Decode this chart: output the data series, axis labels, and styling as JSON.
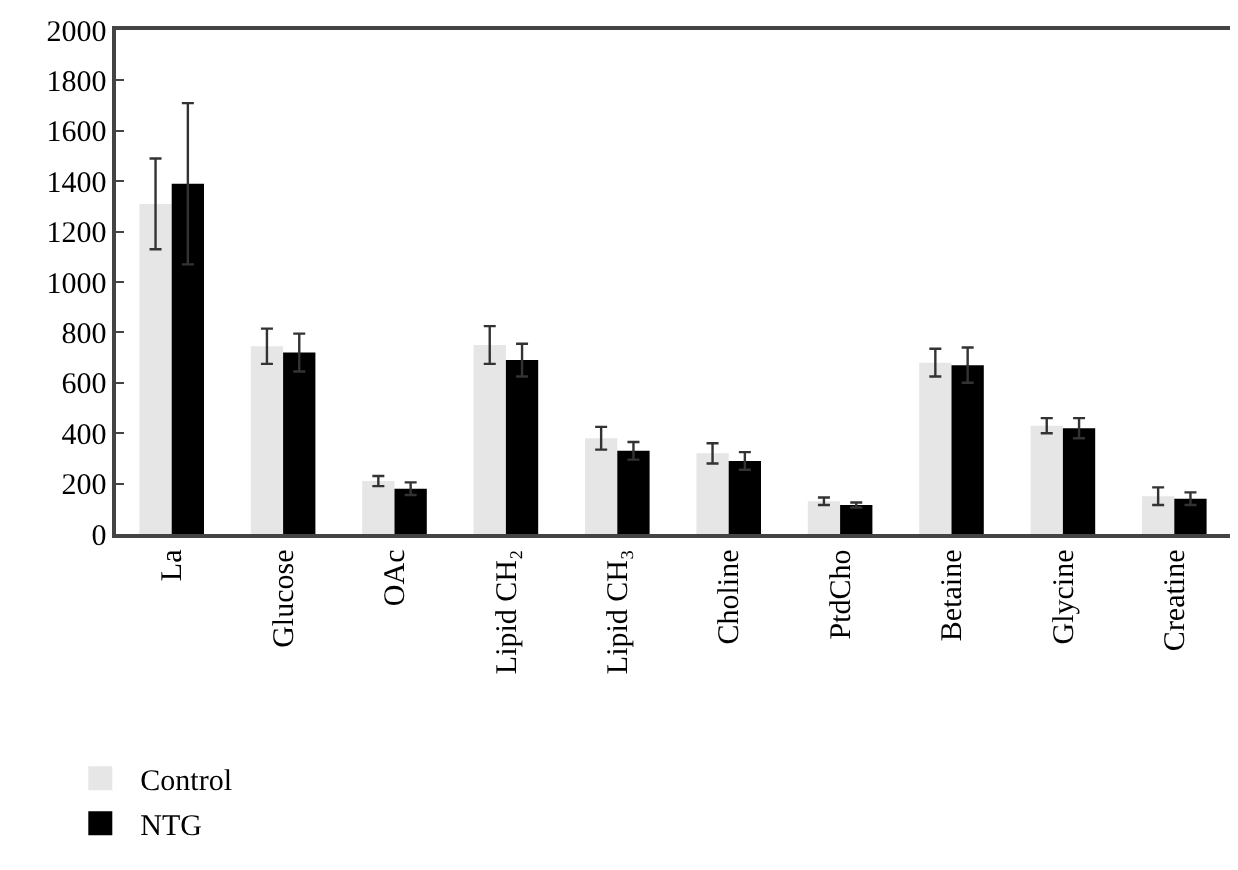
{
  "chart_data": {
    "type": "bar",
    "categories": [
      "La",
      "Glucose",
      "OAc",
      "Lipid CH₂",
      "Lipid CH₃",
      "Choline",
      "PtdCho",
      "Betaine",
      "Glycine",
      "Creatine"
    ],
    "series": [
      {
        "name": "Control",
        "color": "#e6e6e6",
        "values": [
          1310,
          745,
          210,
          750,
          380,
          320,
          130,
          680,
          430,
          150
        ],
        "errors": [
          180,
          70,
          20,
          75,
          45,
          40,
          15,
          55,
          30,
          35
        ]
      },
      {
        "name": "NTG",
        "color": "#000000",
        "values": [
          1390,
          720,
          180,
          690,
          330,
          290,
          115,
          670,
          420,
          140
        ],
        "errors": [
          320,
          75,
          25,
          65,
          35,
          35,
          10,
          70,
          40,
          25
        ]
      }
    ],
    "ylim": [
      0,
      2000
    ],
    "yticks": [
      0,
      200,
      400,
      600,
      800,
      1000,
      1200,
      1400,
      1600,
      1800,
      2000
    ],
    "grid": false,
    "legend": "bottom left"
  }
}
